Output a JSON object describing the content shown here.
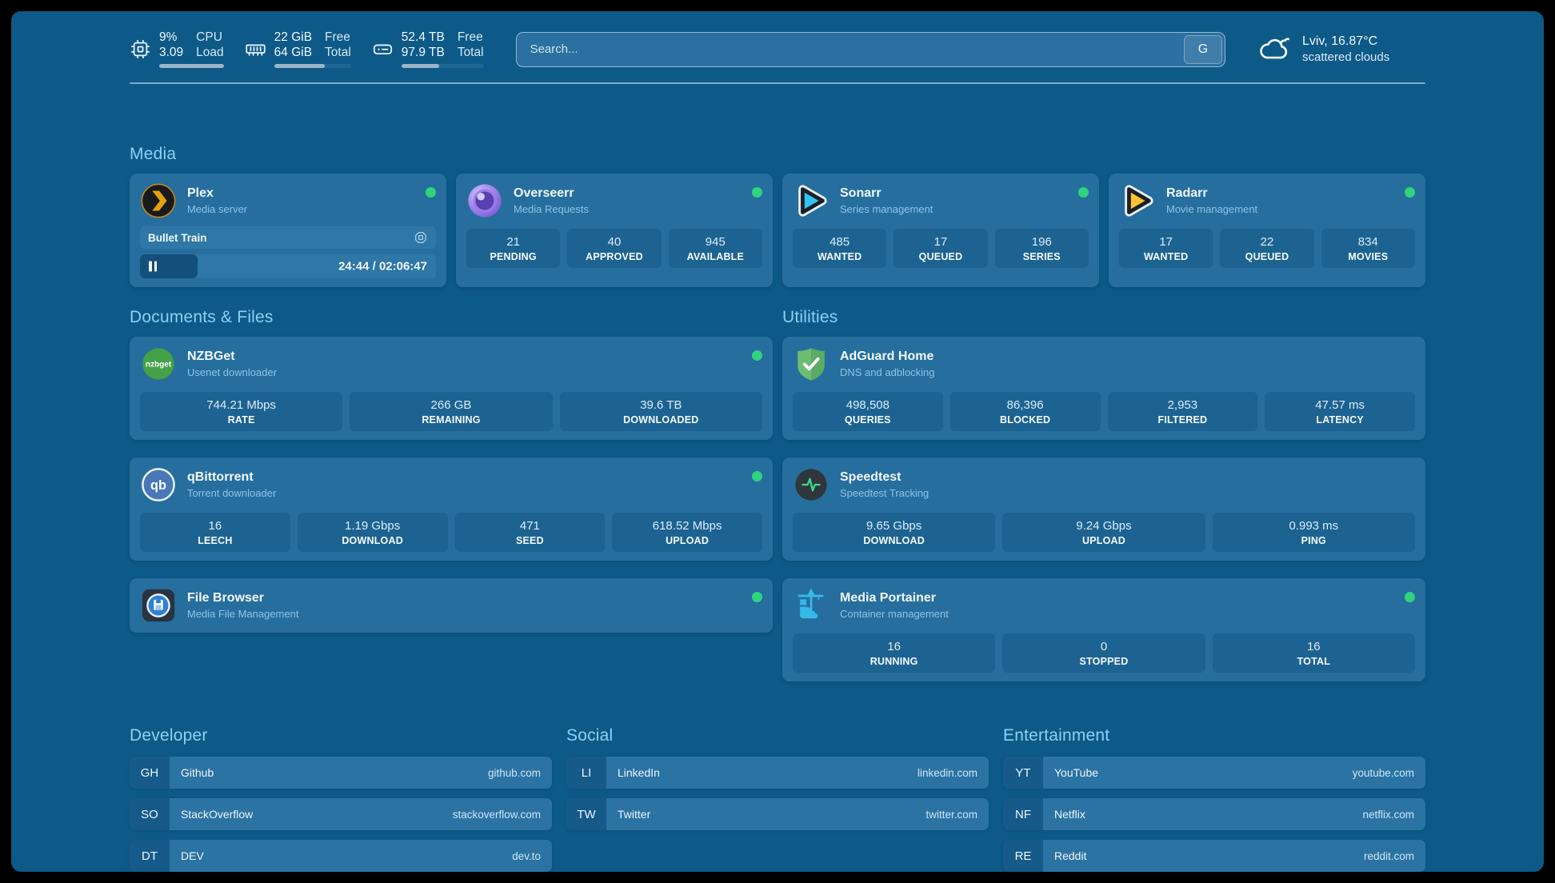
{
  "header": {
    "stats": [
      {
        "icon": "cpu-icon",
        "value1": "9%",
        "value2": "3.09",
        "label1": "CPU",
        "label2": "Load",
        "progress_percent": 100
      },
      {
        "icon": "memory-icon",
        "value1": "22 GiB",
        "value2": "64 GiB",
        "label1": "Free",
        "label2": "Total",
        "progress_percent": 66
      },
      {
        "icon": "disk-icon",
        "value1": "52.4 TB",
        "value2": "97.9 TB",
        "label1": "Free",
        "label2": "Total",
        "progress_percent": 46
      }
    ],
    "search": {
      "placeholder": "Search...",
      "button_label": "G"
    },
    "weather": {
      "location": "Lviv, 16.87°C",
      "condition": "scattered clouds"
    }
  },
  "sections": {
    "media": {
      "title": "Media",
      "cards": [
        {
          "name": "Plex",
          "subtitle": "Media server",
          "online": true,
          "now_playing": {
            "title": "Bullet Train",
            "time": "24:44 / 02:06:47",
            "progress_percent": 19.5
          }
        },
        {
          "name": "Overseerr",
          "subtitle": "Media Requests",
          "online": true,
          "stats": [
            {
              "value": "21",
              "label": "PENDING"
            },
            {
              "value": "40",
              "label": "APPROVED"
            },
            {
              "value": "945",
              "label": "AVAILABLE"
            }
          ]
        },
        {
          "name": "Sonarr",
          "subtitle": "Series management",
          "online": true,
          "stats": [
            {
              "value": "485",
              "label": "WANTED"
            },
            {
              "value": "17",
              "label": "QUEUED"
            },
            {
              "value": "196",
              "label": "SERIES"
            }
          ]
        },
        {
          "name": "Radarr",
          "subtitle": "Movie management",
          "online": true,
          "stats": [
            {
              "value": "17",
              "label": "WANTED"
            },
            {
              "value": "22",
              "label": "QUEUED"
            },
            {
              "value": "834",
              "label": "MOVIES"
            }
          ]
        }
      ]
    },
    "documents": {
      "title": "Documents & Files",
      "cards": [
        {
          "name": "NZBGet",
          "subtitle": "Usenet downloader",
          "online": true,
          "stats": [
            {
              "value": "744.21 Mbps",
              "label": "RATE"
            },
            {
              "value": "266 GB",
              "label": "REMAINING"
            },
            {
              "value": "39.6 TB",
              "label": "DOWNLOADED"
            }
          ]
        },
        {
          "name": "qBittorrent",
          "subtitle": "Torrent downloader",
          "online": true,
          "stats": [
            {
              "value": "16",
              "label": "LEECH"
            },
            {
              "value": "1.19 Gbps",
              "label": "DOWNLOAD"
            },
            {
              "value": "471",
              "label": "SEED"
            },
            {
              "value": "618.52 Mbps",
              "label": "UPLOAD"
            }
          ]
        },
        {
          "name": "File Browser",
          "subtitle": "Media File Management",
          "online": true,
          "stats": []
        }
      ]
    },
    "utilities": {
      "title": "Utilities",
      "cards": [
        {
          "name": "AdGuard Home",
          "subtitle": "DNS and adblocking",
          "online": false,
          "stats": [
            {
              "value": "498,508",
              "label": "QUERIES"
            },
            {
              "value": "86,396",
              "label": "BLOCKED"
            },
            {
              "value": "2,953",
              "label": "FILTERED"
            },
            {
              "value": "47.57 ms",
              "label": "LATENCY"
            }
          ]
        },
        {
          "name": "Speedtest",
          "subtitle": "Speedtest Tracking",
          "online": false,
          "stats": [
            {
              "value": "9.65 Gbps",
              "label": "DOWNLOAD"
            },
            {
              "value": "9.24 Gbps",
              "label": "UPLOAD"
            },
            {
              "value": "0.993 ms",
              "label": "PING"
            }
          ]
        },
        {
          "name": "Media Portainer",
          "subtitle": "Container management",
          "online": true,
          "stats": [
            {
              "value": "16",
              "label": "RUNNING"
            },
            {
              "value": "0",
              "label": "STOPPED"
            },
            {
              "value": "16",
              "label": "TOTAL"
            }
          ]
        }
      ]
    },
    "bookmarks": [
      {
        "title": "Developer",
        "items": [
          {
            "abbr": "GH",
            "name": "Github",
            "url": "github.com"
          },
          {
            "abbr": "SO",
            "name": "StackOverflow",
            "url": "stackoverflow.com"
          },
          {
            "abbr": "DT",
            "name": "DEV",
            "url": "dev.to"
          }
        ]
      },
      {
        "title": "Social",
        "items": [
          {
            "abbr": "LI",
            "name": "LinkedIn",
            "url": "linkedin.com"
          },
          {
            "abbr": "TW",
            "name": "Twitter",
            "url": "twitter.com"
          }
        ]
      },
      {
        "title": "Entertainment",
        "items": [
          {
            "abbr": "YT",
            "name": "YouTube",
            "url": "youtube.com"
          },
          {
            "abbr": "NF",
            "name": "Netflix",
            "url": "netflix.com"
          },
          {
            "abbr": "RE",
            "name": "Reddit",
            "url": "reddit.com"
          }
        ]
      }
    ]
  },
  "colors": {
    "page_background": "#0d5a88",
    "card_background": "#266e9d",
    "tile_background": "#1d6392",
    "heading": "#8dd0f5",
    "status_online": "#2fd47c"
  }
}
